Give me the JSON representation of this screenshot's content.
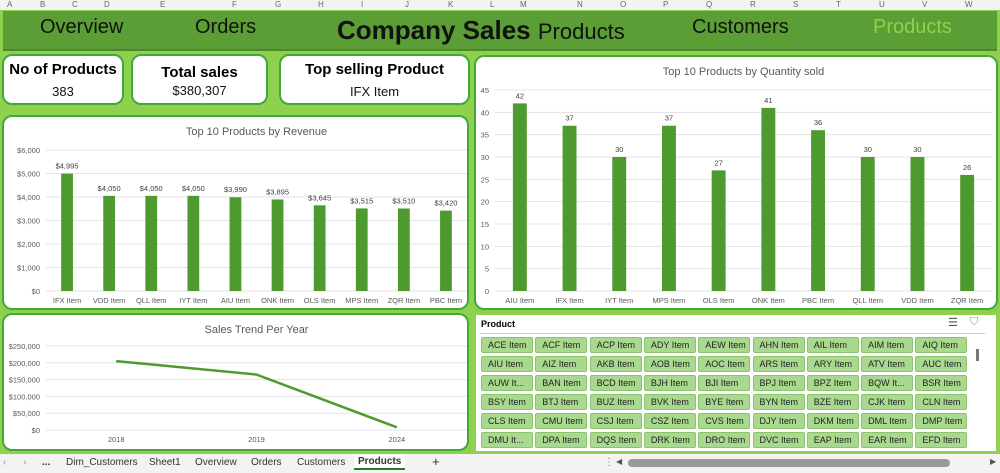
{
  "columns": [
    "A",
    "B",
    "C",
    "D",
    "E",
    "F",
    "G",
    "H",
    "I",
    "J",
    "K",
    "L",
    "M",
    "N",
    "O",
    "P",
    "Q",
    "R",
    "S",
    "T",
    "U",
    "V",
    "W"
  ],
  "header": {
    "nav": [
      "Overview",
      "Orders",
      "Customers",
      "Products"
    ],
    "title_bold": "Company Sales",
    "title_rest": "Products"
  },
  "kpis": [
    {
      "label": "No of Products",
      "value": "383"
    },
    {
      "label": "Total sales",
      "value": "$380,307"
    },
    {
      "label": "Top selling Product",
      "value": "IFX Item"
    }
  ],
  "colors": {
    "header": "#5b9e35",
    "background": "#8fd14f",
    "bar": "#4e9a2f",
    "active_nav": "#8fd14f"
  },
  "chart_data": [
    {
      "type": "bar",
      "title": "Top 10 Products by Revenue",
      "categories": [
        "IFX Item",
        "VDD Item",
        "QLL Item",
        "IYT Item",
        "AIU Item",
        "ONK Item",
        "OLS Item",
        "MPS Item",
        "ZQR Item",
        "PBC Item"
      ],
      "values": [
        4995,
        4050,
        4050,
        4050,
        3990,
        3895,
        3645,
        3515,
        3510,
        3420
      ],
      "data_labels": [
        "$4,995",
        "$4,050",
        "$4,050",
        "$4,050",
        "$3,990",
        "$3,895",
        "$3,645",
        "$3,515",
        "$3,510",
        "$3,420"
      ],
      "yticks": [
        "$0",
        "$1,000",
        "$2,000",
        "$3,000",
        "$4,000",
        "$5,000",
        "$6,000"
      ],
      "ylim": [
        0,
        6000
      ],
      "grid": true
    },
    {
      "type": "bar",
      "title": "Top 10 Products by Quantity sold",
      "categories": [
        "AIU Item",
        "IFX Item",
        "IYT Item",
        "MPS Item",
        "OLS Item",
        "ONK Item",
        "PBC Item",
        "QLL Item",
        "VDD Item",
        "ZQR Item"
      ],
      "values": [
        42,
        37,
        30,
        37,
        27,
        41,
        36,
        30,
        30,
        26
      ],
      "data_labels": [
        "42",
        "37",
        "30",
        "37",
        "27",
        "41",
        "36",
        "30",
        "30",
        "26"
      ],
      "yticks": [
        "0",
        "5",
        "10",
        "15",
        "20",
        "25",
        "30",
        "35",
        "40",
        "45"
      ],
      "ylim": [
        0,
        45
      ],
      "grid": true
    },
    {
      "type": "line",
      "title": "Sales Trend Per Year",
      "categories": [
        "2018",
        "2019",
        "2024"
      ],
      "values": [
        205000,
        165000,
        8000
      ],
      "yticks": [
        "$0",
        "$50,000",
        "$100,000",
        "$150,000",
        "$200,000",
        "$250,000"
      ],
      "ylim": [
        0,
        250000
      ],
      "grid": true
    }
  ],
  "slicer": {
    "title": "Product",
    "items": [
      "ACE Item",
      "ACF Item",
      "ACP Item",
      "ADY Item",
      "AEW Item",
      "AHN Item",
      "AIL Item",
      "AIM Item",
      "AIQ Item",
      "AIU Item",
      "AIZ Item",
      "AKB Item",
      "AOB Item",
      "AOC Item",
      "ARS Item",
      "ARY Item",
      "ATV Item",
      "AUC Item",
      "AUW It...",
      "BAN Item",
      "BCD Item",
      "BJH Item",
      "BJI Item",
      "BPJ Item",
      "BPZ Item",
      "BQW It...",
      "BSR Item",
      "BSY Item",
      "BTJ Item",
      "BUZ Item",
      "BVK Item",
      "BYE Item",
      "BYN Item",
      "BZE Item",
      "CJK Item",
      "CLN Item",
      "CLS Item",
      "CMU Item",
      "CSJ Item",
      "CSZ Item",
      "CVS Item",
      "DJY Item",
      "DKM Item",
      "DML Item",
      "DMP Item",
      "DMU It...",
      "DPA Item",
      "DQS Item",
      "DRK Item",
      "DRO Item",
      "DVC Item",
      "EAP Item",
      "EAR Item",
      "EFD Item"
    ]
  },
  "sheet_tabs": {
    "items": [
      "Dim_Customers",
      "Sheet1",
      "Overview",
      "Orders",
      "Customers",
      "Products"
    ],
    "active": "Products",
    "more": "...",
    "add": "+"
  }
}
